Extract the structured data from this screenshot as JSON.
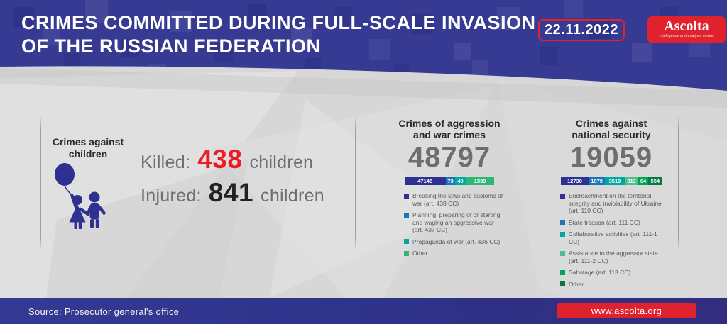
{
  "colors": {
    "header_blue": "#363a93",
    "accent_red": "#e0212e",
    "number_red": "#ed1c24",
    "number_black": "#231f20",
    "gray_text": "#6d6e71",
    "dark_text": "#2b2b2b",
    "legend_text": "#58595b"
  },
  "header": {
    "title_line1": "CRIMES COMMITTED DURING FULL-SCALE INVASION",
    "title_line2": "OF THE RUSSIAN FEDERATION",
    "date": "22.11.2022",
    "logo_name": "Ascolta",
    "logo_tagline": "intelligence and analysis centre"
  },
  "footer": {
    "source": "Source: Prosecutor general's office",
    "website": "www.ascolta.org"
  },
  "chart_data": [
    {
      "type": "stat",
      "title": "Crimes against children",
      "stats": [
        {
          "label": "Killed:",
          "value": 438,
          "suffix": "children",
          "value_color": "#ed1c24"
        },
        {
          "label": "Injured:",
          "value": 841,
          "suffix": "children",
          "value_color": "#231f20"
        }
      ]
    },
    {
      "type": "bar",
      "subtype": "stacked-horizontal",
      "title": "Crimes of aggression and war crimes",
      "title_line1": "Crimes of aggression",
      "title_line2": "and war crimes",
      "total": 48797,
      "legend_position": "bottom",
      "segments": [
        {
          "label": "Breaking the laws and customs of war (art. 438 CC)",
          "value": 47145,
          "color": "#2e3192",
          "width_pct": 46
        },
        {
          "label": "Planning, preparing of or starting and waging an aggressive war (art. 437 CC)",
          "value": 73,
          "color": "#1b75bc",
          "width_pct": 10.5
        },
        {
          "label": "Propaganda of war (art. 436 CC)",
          "value": 40,
          "color": "#00a99d",
          "width_pct": 11.5
        },
        {
          "label": "Other",
          "value": 1539,
          "color": "#2eb578",
          "width_pct": 32
        }
      ]
    },
    {
      "type": "bar",
      "subtype": "stacked-horizontal",
      "title": "Crimes against national security",
      "title_line1": "Crimes against",
      "title_line2": "national security",
      "total": 19059,
      "legend_position": "bottom",
      "segments": [
        {
          "label": "Encroachment on the territorial integrity and inviolability of Ukraine (art. 110 CC)",
          "value": 12730,
          "color": "#2e3192",
          "width_pct": 28
        },
        {
          "label": "State treason (art. 111 CC)",
          "value": 1879,
          "color": "#1b75bc",
          "width_pct": 15.5
        },
        {
          "label": "Collaborative activities (art. 111-1 CC)",
          "value": 3519,
          "color": "#00a99d",
          "width_pct": 20
        },
        {
          "label": "Assistance to the aggressor state (art. 111-2 CC)",
          "value": 313,
          "color": "#4dbd8a",
          "width_pct": 13
        },
        {
          "label": "Sabotage (art. 113 CC)",
          "value": 64,
          "color": "#00a651",
          "width_pct": 10
        },
        {
          "label": "Other",
          "value": 554,
          "color": "#067a43",
          "width_pct": 13.5
        }
      ]
    }
  ]
}
